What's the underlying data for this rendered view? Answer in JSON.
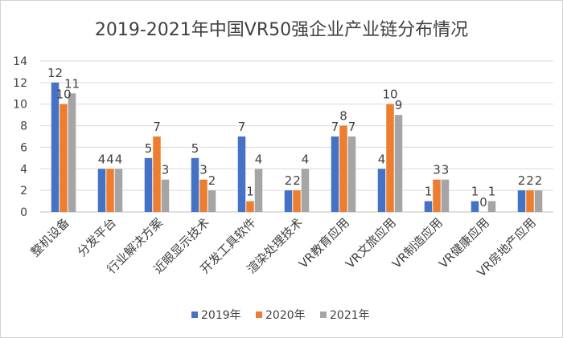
{
  "chart_data": {
    "type": "bar",
    "title": "2019-2021年中国VR50强企业产业链分布情况",
    "categories": [
      "整机设备",
      "分发平台",
      "行业解决方案",
      "近眼显示技术",
      "开发工具软件",
      "渲染处理技术",
      "VR教育应用",
      "VR文旅应用",
      "VR制造应用",
      "VR健康应用",
      "VR房地产应用"
    ],
    "series": [
      {
        "name": "2019年",
        "color": "#4472c4",
        "values": [
          12,
          4,
          5,
          5,
          7,
          2,
          7,
          4,
          1,
          1,
          2
        ]
      },
      {
        "name": "2020年",
        "color": "#ed7d31",
        "values": [
          10,
          4,
          7,
          3,
          1,
          2,
          8,
          10,
          3,
          0,
          2
        ]
      },
      {
        "name": "2021年",
        "color": "#a5a5a5",
        "values": [
          11,
          4,
          3,
          2,
          4,
          4,
          7,
          9,
          3,
          1,
          2
        ]
      }
    ],
    "ylim": [
      0,
      14
    ],
    "yticks": [
      0,
      2,
      4,
      6,
      8,
      10,
      12,
      14
    ],
    "grid": true,
    "legend": "bottom",
    "xlabel": "",
    "ylabel": ""
  }
}
